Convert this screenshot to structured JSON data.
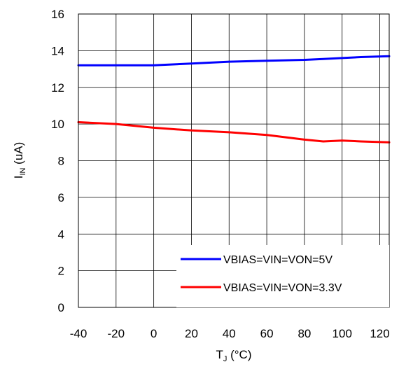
{
  "chart_data": {
    "type": "line",
    "xlabel": {
      "main": "T",
      "sub": "J",
      "rest": " (°C)"
    },
    "ylabel": {
      "main": "I",
      "sub": "IN",
      "rest": " (uA)"
    },
    "xlim": [
      -40,
      125
    ],
    "ylim": [
      0,
      16
    ],
    "xticks": [
      -40,
      -20,
      0,
      20,
      40,
      60,
      80,
      100,
      120
    ],
    "yticks": [
      0,
      2,
      4,
      6,
      8,
      10,
      12,
      14,
      16
    ],
    "grid": true,
    "legend": "bottom-right",
    "series": [
      {
        "name": "VBIAS=VIN=VON=5V",
        "color": "#0000ff",
        "x": [
          -40,
          -20,
          0,
          20,
          40,
          60,
          80,
          90,
          100,
          110,
          125
        ],
        "y": [
          13.2,
          13.2,
          13.2,
          13.3,
          13.4,
          13.45,
          13.5,
          13.55,
          13.6,
          13.65,
          13.7
        ]
      },
      {
        "name": "VBIAS=VIN=VON=3.3V",
        "color": "#ff0000",
        "x": [
          -40,
          -20,
          0,
          20,
          40,
          60,
          80,
          90,
          100,
          110,
          125
        ],
        "y": [
          10.1,
          10.0,
          9.8,
          9.65,
          9.55,
          9.4,
          9.15,
          9.05,
          9.1,
          9.05,
          9.0
        ]
      }
    ]
  }
}
